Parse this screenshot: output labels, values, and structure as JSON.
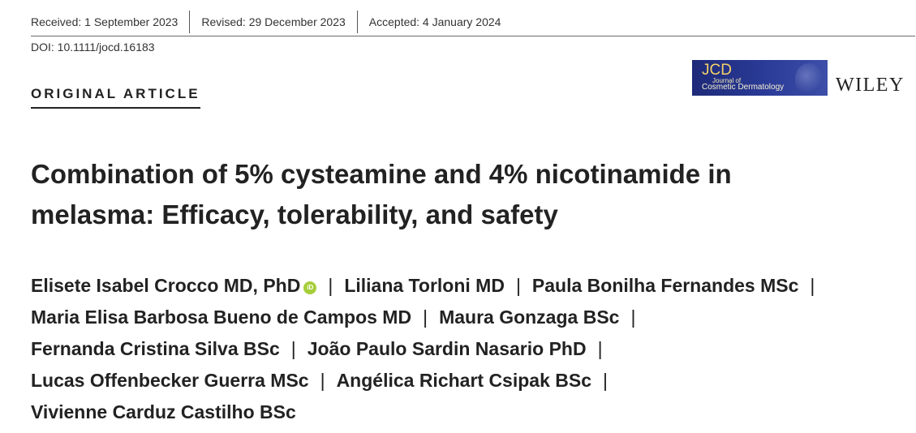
{
  "history": {
    "received": "Received: 1 September 2023",
    "revised": "Revised: 29 December 2023",
    "accepted": "Accepted: 4 January 2024"
  },
  "doi": "DOI: 10.1111/jocd.16183",
  "article_type": "ORIGINAL ARTICLE",
  "journal": {
    "abbr": "JCD",
    "line1": "Journal of",
    "line2": "Cosmetic Dermatology"
  },
  "publisher": "WILEY",
  "title": "Combination of 5% cysteamine and 4% nicotinamide in melasma: Efficacy, tolerability, and safety",
  "authors": {
    "a1": "Elisete Isabel Crocco MD, PhD",
    "a2": "Liliana Torloni MD",
    "a3": "Paula Bonilha Fernandes MSc",
    "a4": "Maria Elisa Barbosa Bueno de Campos MD",
    "a5": "Maura Gonzaga BSc",
    "a6": "Fernanda Cristina Silva BSc",
    "a7": "João Paulo Sardin Nasario PhD",
    "a8": "Lucas Offenbecker Guerra MSc",
    "a9": "Angélica Richart Csipak BSc",
    "a10": "Vivienne Carduz Castilho BSc"
  },
  "separator": "|",
  "orcid_icon_text": "iD",
  "colors": {
    "journal_bg": "#1e2a78",
    "journal_text": "#f4d26a",
    "orcid": "#a6ce39",
    "text": "#222222"
  }
}
